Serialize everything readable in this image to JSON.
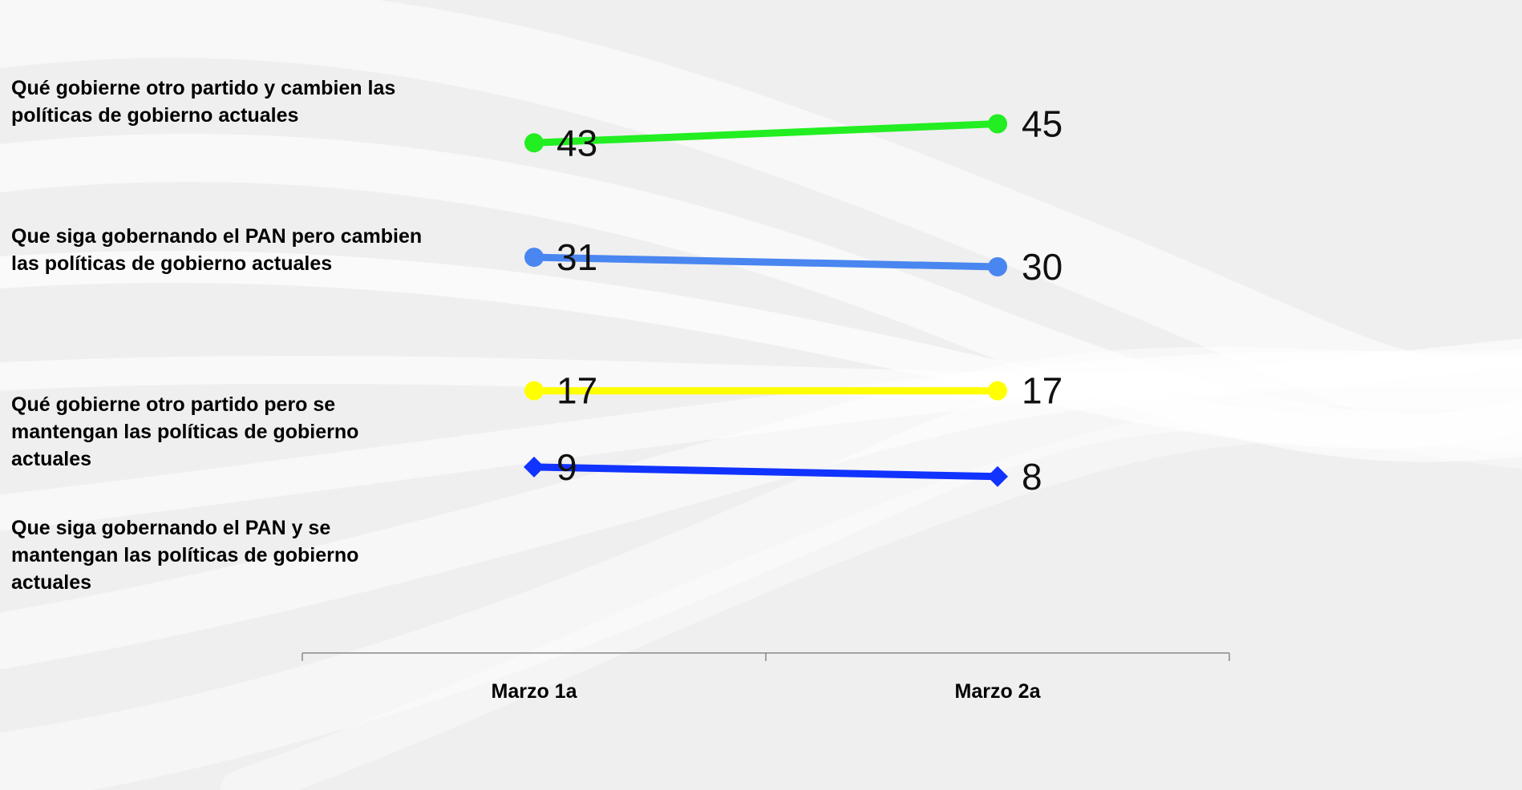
{
  "chart_data": {
    "type": "line",
    "title": "",
    "xlabel": "",
    "ylabel": "",
    "categories": [
      "Marzo 1a",
      "Marzo 2a"
    ],
    "ylim": [
      0,
      50
    ],
    "grid": false,
    "legend": "left",
    "series": [
      {
        "name": "Qué gobierne otro partido y cambien las políticas de gobierno actuales",
        "values": [
          43,
          45
        ],
        "color": "#22ee22",
        "marker": "circle"
      },
      {
        "name": "Que siga gobernando el PAN pero cambien las políticas de gobierno actuales",
        "values": [
          31,
          30
        ],
        "color": "#4a86f0",
        "marker": "circle"
      },
      {
        "name": "Qué gobierne otro partido pero se mantengan las políticas de gobierno actuales",
        "values": [
          17,
          17
        ],
        "color": "#ffff00",
        "marker": "circle"
      },
      {
        "name": "Que siga gobernando el PAN y se mantengan las políticas de gobierno actuales",
        "values": [
          9,
          8
        ],
        "color": "#1133ff",
        "marker": "diamond"
      }
    ]
  }
}
